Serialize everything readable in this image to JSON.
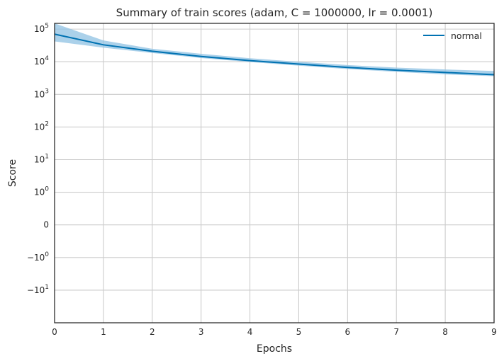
{
  "chart_data": {
    "type": "line",
    "title": "Summary of train scores (adam, C = 1000000, lr = 0.0001)",
    "xlabel": "Epochs",
    "ylabel": "Score",
    "xlim": [
      0,
      9
    ],
    "yscale": "symlog",
    "ylim": [
      -100,
      150000
    ],
    "x_ticks": [
      0,
      1,
      2,
      3,
      4,
      5,
      6,
      7,
      8,
      9
    ],
    "y_ticks": [
      {
        "value": 100000,
        "base": "10",
        "exp": "5"
      },
      {
        "value": 10000,
        "base": "10",
        "exp": "4"
      },
      {
        "value": 1000,
        "base": "10",
        "exp": "3"
      },
      {
        "value": 100,
        "base": "10",
        "exp": "2"
      },
      {
        "value": 10,
        "base": "10",
        "exp": "1"
      },
      {
        "value": 1,
        "base": "10",
        "exp": "0"
      },
      {
        "value": 0,
        "base": "0",
        "exp": ""
      },
      {
        "value": -1,
        "base": "−10",
        "exp": "0"
      },
      {
        "value": -10,
        "base": "−10",
        "exp": "1"
      }
    ],
    "grid": true,
    "legend_position": "top-right",
    "series": [
      {
        "name": "normal",
        "color": "#0072b2",
        "band_color": "#8fc1e3",
        "x": [
          0,
          1,
          2,
          3,
          4,
          5,
          6,
          7,
          8,
          9
        ],
        "mean": [
          70000,
          33000,
          21000,
          14500,
          10800,
          8500,
          6700,
          5500,
          4700,
          4000
        ],
        "upper": [
          150000,
          45000,
          25000,
          17500,
          12800,
          10000,
          7900,
          6600,
          5800,
          5200
        ],
        "lower": [
          42000,
          27000,
          18500,
          13000,
          9800,
          7600,
          6000,
          4900,
          4100,
          3600
        ]
      }
    ]
  }
}
